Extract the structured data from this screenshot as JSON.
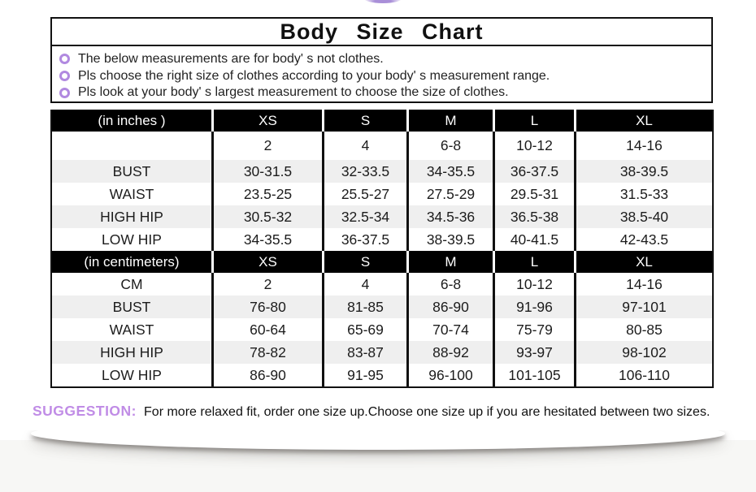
{
  "page": {
    "title": "Body Size Chart"
  },
  "notes": {
    "items": [
      "The below measurements are for body' s not clothes.",
      "Pls choose the right size of clothes according to your body' s measurement range.",
      "Pls look at your body' s largest measurement to choose the size of clothes."
    ]
  },
  "table": {
    "sections": [
      {
        "header": {
          "label": "(in inches )",
          "sizes": [
            "XS",
            "S",
            "M",
            "L",
            "XL"
          ]
        },
        "rows": [
          {
            "label": "",
            "values": [
              "2",
              "4",
              "6-8",
              "10-12",
              "14-16"
            ]
          },
          {
            "label": "BUST",
            "values": [
              "30-31.5",
              "32-33.5",
              "34-35.5",
              "36-37.5",
              "38-39.5"
            ]
          },
          {
            "label": "WAIST",
            "values": [
              "23.5-25",
              "25.5-27",
              "27.5-29",
              "29.5-31",
              "31.5-33"
            ]
          },
          {
            "label": "HIGH HIP",
            "values": [
              "30.5-32",
              "32.5-34",
              "34.5-36",
              "36.5-38",
              "38.5-40"
            ]
          },
          {
            "label": "LOW HIP",
            "values": [
              "34-35.5",
              "36-37.5",
              "38-39.5",
              "40-41.5",
              "42-43.5"
            ]
          }
        ]
      },
      {
        "header": {
          "label": "(in centimeters)",
          "sizes": [
            "XS",
            "S",
            "M",
            "L",
            "XL"
          ]
        },
        "rows": [
          {
            "label": "CM",
            "values": [
              "2",
              "4",
              "6-8",
              "10-12",
              "14-16"
            ]
          },
          {
            "label": "BUST",
            "values": [
              "76-80",
              "81-85",
              "86-90",
              "91-96",
              "97-101"
            ]
          },
          {
            "label": "WAIST",
            "values": [
              "60-64",
              "65-69",
              "70-74",
              "75-79",
              "80-85"
            ]
          },
          {
            "label": "HIGH HIP",
            "values": [
              "78-82",
              "83-87",
              "88-92",
              "93-97",
              "98-102"
            ]
          },
          {
            "label": "LOW HIP",
            "values": [
              "86-90",
              "91-95",
              "96-100",
              "101-105",
              "106-110"
            ]
          }
        ]
      }
    ]
  },
  "suggestion": {
    "label": "SUGGESTION:",
    "text": "For more relaxed fit, order one size up.Choose one size up if you are hesitated between two sizes."
  },
  "colors": {
    "bullet": "#b189e0",
    "suggestion_label": "#c08ce6",
    "header_bg": "#000000",
    "header_text": "#ffffff",
    "row_alt": "#efefef",
    "page_bottom_bg": "#f7f7f5",
    "logo_fragment": "#a98fd8",
    "border": "#111111"
  }
}
